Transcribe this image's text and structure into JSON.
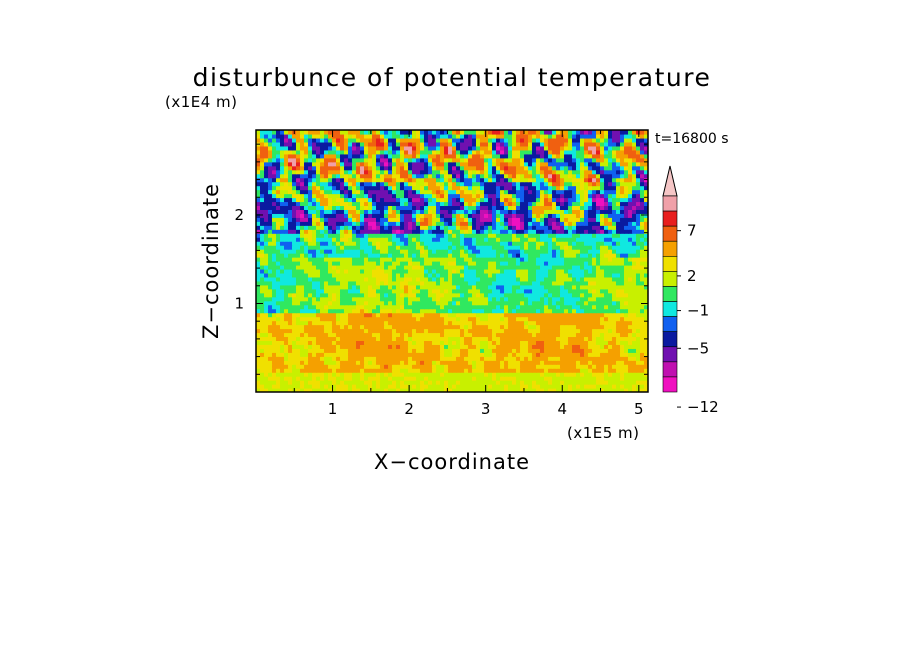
{
  "chart_data": {
    "type": "heatmap",
    "title": "disturbunce of potential temperature",
    "xlabel": "X−coordinate",
    "ylabel": "Z−coordinate",
    "x_scale_label": "(x1E5 m)",
    "y_scale_label": "(x1E4 m)",
    "time_label": "t=16800 s",
    "xlim": [
      0,
      5.12
    ],
    "ylim": [
      0,
      2.96
    ],
    "x_ticks": [
      1,
      2,
      3,
      4,
      5
    ],
    "y_ticks": [
      1,
      2
    ],
    "colorbar": {
      "labels": [
        "7",
        "2",
        "−1",
        "−5",
        "−12"
      ],
      "levels_top_to_bottom": [
        {
          "value": "above top",
          "color": "#f5c6c6"
        },
        {
          "value": "8-10",
          "color": "#f0a0a8"
        },
        {
          "value": "7-8",
          "color": "#e81e1e"
        },
        {
          "value": "4-7",
          "color": "#f06010"
        },
        {
          "value": "2-4",
          "color": "#f5a000"
        },
        {
          "value": "1-2",
          "color": "#f0e000"
        },
        {
          "value": "0-1",
          "color": "#c8f000"
        },
        {
          "value": "-1-0",
          "color": "#30e860"
        },
        {
          "value": "-2--1",
          "color": "#10e8e0"
        },
        {
          "value": "-3--2",
          "color": "#1060f0"
        },
        {
          "value": "-5--3",
          "color": "#0a1aa0"
        },
        {
          "value": "-7--5",
          "color": "#7010b0"
        },
        {
          "value": "-9--7",
          "color": "#c010b0"
        },
        {
          "value": "-12--9",
          "color": "#f010c0"
        }
      ]
    },
    "field_description_rows_top_to_bottom": [
      {
        "z_range": [
          2.5,
          2.96
        ],
        "dominant": [
          "#f06010",
          "#f5a000",
          "#0a1aa0",
          "#10e8e0",
          "#30e860",
          "#e81e1e"
        ]
      },
      {
        "z_range": [
          1.9,
          2.5
        ],
        "dominant": [
          "#0a1aa0",
          "#1060f0",
          "#10e8e0",
          "#f5a000",
          "#f06010",
          "#30e860"
        ]
      },
      {
        "z_range": [
          1.6,
          1.9
        ],
        "dominant": [
          "#30e860",
          "#c8f000",
          "#10e8e0",
          "#0a1aa0"
        ]
      },
      {
        "z_range": [
          1.0,
          1.6
        ],
        "dominant": [
          "#30e860",
          "#c8f000",
          "#f0e000"
        ]
      },
      {
        "z_range": [
          0.7,
          1.0
        ],
        "dominant": [
          "#30e860",
          "#f0e000",
          "#c8f000"
        ]
      },
      {
        "z_range": [
          0.2,
          0.7
        ],
        "dominant": [
          "#f5a000",
          "#f0e000",
          "#f06010"
        ]
      },
      {
        "z_range": [
          0.0,
          0.2
        ],
        "dominant": [
          "#f0e000",
          "#c8f000",
          "#30e860"
        ]
      }
    ]
  }
}
